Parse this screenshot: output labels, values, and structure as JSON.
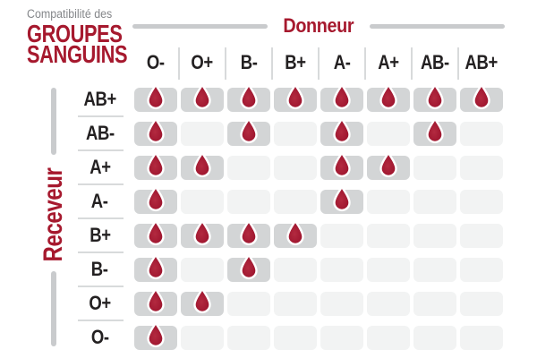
{
  "title": {
    "eyebrow": "Compatibilité des",
    "line1": "GROUPES",
    "line2": "SANGUINS"
  },
  "axes": {
    "donor_label": "Donneur",
    "receiver_label": "Receveur"
  },
  "chart_data": {
    "type": "table",
    "title": "Compatibilité des GROUPES SANGUINS",
    "donor_axis_label": "Donneur",
    "receiver_axis_label": "Receveur",
    "columns_donors": [
      "O-",
      "O+",
      "B-",
      "B+",
      "A-",
      "A+",
      "AB-",
      "AB+"
    ],
    "rows_receivers": [
      "AB+",
      "AB-",
      "A+",
      "A-",
      "B+",
      "B-",
      "O+",
      "O-"
    ],
    "cell_marker_compatible": "blood-drop-icon",
    "cell_marker_incompatible": "empty",
    "matrix": [
      [
        1,
        1,
        1,
        1,
        1,
        1,
        1,
        1
      ],
      [
        1,
        0,
        1,
        0,
        1,
        0,
        1,
        0
      ],
      [
        1,
        1,
        0,
        0,
        1,
        1,
        0,
        0
      ],
      [
        1,
        0,
        0,
        0,
        1,
        0,
        0,
        0
      ],
      [
        1,
        1,
        1,
        1,
        0,
        0,
        0,
        0
      ],
      [
        1,
        0,
        1,
        0,
        0,
        0,
        0,
        0
      ],
      [
        1,
        1,
        0,
        0,
        0,
        0,
        0,
        0
      ],
      [
        1,
        0,
        0,
        0,
        0,
        0,
        0,
        0
      ]
    ]
  },
  "colors": {
    "brand_red": "#A6192E",
    "drop_red_dark": "#99102A",
    "drop_red_light": "#B32A40",
    "text_dark": "#232021",
    "text_gray": "#85878A",
    "cell_compatible": "#D3D5D6",
    "cell_incompatible": "#F2F3F3",
    "axis_bar_gray": "#C9CBCD",
    "divider_gray": "#D8DADB",
    "background": "#FFFFFF"
  }
}
